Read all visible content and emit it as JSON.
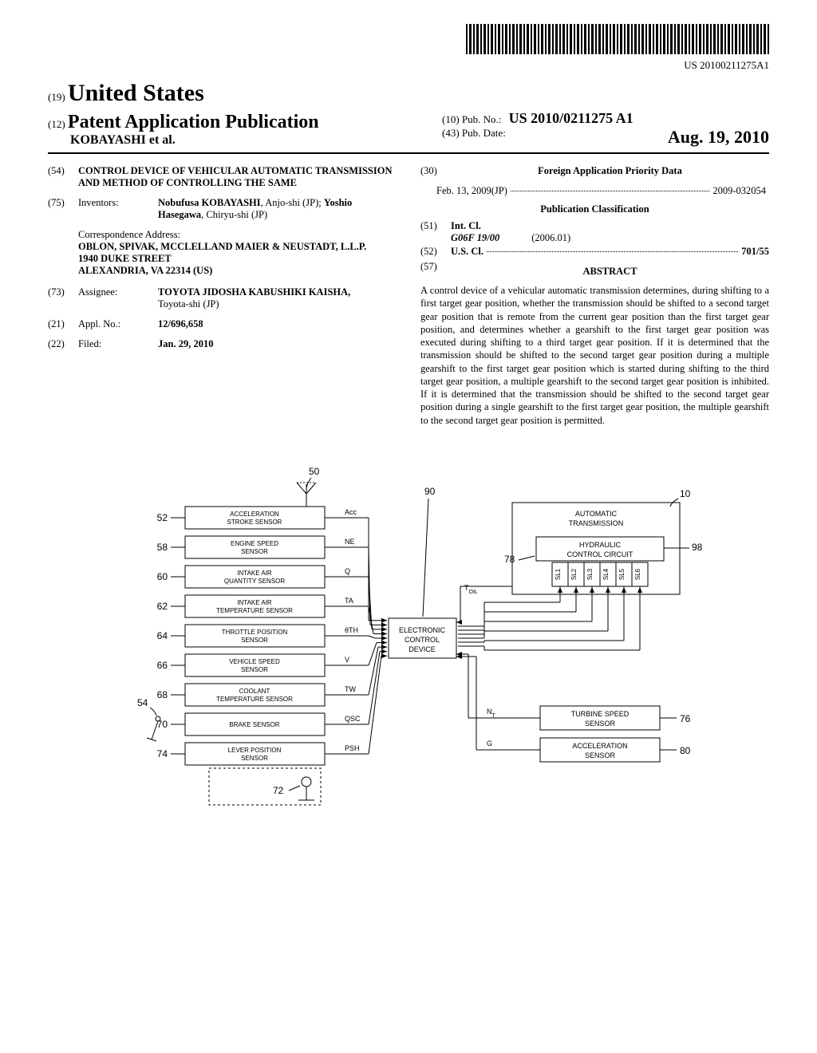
{
  "barcode_doc_number": "US 20100211275A1",
  "header": {
    "code19": "(19)",
    "country": "United States",
    "code12": "(12)",
    "pub_type": "Patent Application Publication",
    "authors": "KOBAYASHI et al.",
    "code10": "(10)",
    "pub_no_label": "Pub. No.:",
    "pub_no": "US 2010/0211275 A1",
    "code43": "(43)",
    "pub_date_label": "Pub. Date:",
    "pub_date": "Aug. 19, 2010"
  },
  "left": {
    "sec54": "(54)",
    "title": "CONTROL DEVICE OF VEHICULAR AUTOMATIC TRANSMISSION AND METHOD OF CONTROLLING THE SAME",
    "sec75": "(75)",
    "inventors_label": "Inventors:",
    "inventors": "Nobufusa KOBAYASHI, Anjo-shi (JP); Yoshio Hasegawa, Chiryu-shi (JP)",
    "corr_label": "Correspondence Address:",
    "corr_name": "OBLON, SPIVAK, MCCLELLAND MAIER & NEUSTADT, L.L.P.",
    "corr_street": "1940 DUKE STREET",
    "corr_city": "ALEXANDRIA, VA 22314 (US)",
    "sec73": "(73)",
    "assignee_label": "Assignee:",
    "assignee": "TOYOTA JIDOSHA KABUSHIKI KAISHA,",
    "assignee_loc": "Toyota-shi (JP)",
    "sec21": "(21)",
    "appl_label": "Appl. No.:",
    "appl_no": "12/696,658",
    "sec22": "(22)",
    "filed_label": "Filed:",
    "filed": "Jan. 29, 2010"
  },
  "right": {
    "sec30": "(30)",
    "foreign_header": "Foreign Application Priority Data",
    "foreign_date": "Feb. 13, 2009",
    "foreign_cc": "(JP)",
    "foreign_num": "2009-032054",
    "pub_class": "Publication Classification",
    "sec51": "(51)",
    "intcl_label": "Int. Cl.",
    "intcl_code": "G06F 19/00",
    "intcl_date": "(2006.01)",
    "sec52": "(52)",
    "uscl_label": "U.S. Cl.",
    "uscl_code": "701/55",
    "sec57": "(57)",
    "abstract_label": "ABSTRACT",
    "abstract": "A control device of a vehicular automatic transmission determines, during shifting to a first target gear position, whether the transmission should be shifted to a second target gear position that is remote from the current gear position than the first target gear position, and determines whether a gearshift to the first target gear position was executed during shifting to a third target gear position. If it is determined that the transmission should be shifted to the second target gear position during a multiple gearshift to the first target gear position which is started during shifting to the third target gear position, a multiple gearshift to the second target gear position is inhibited. If it is determined that the transmission should be shifted to the second target gear position during a single gearshift to the first target gear position, the multiple gearshift to the second target gear position is permitted."
  },
  "diagram": {
    "ref50": "50",
    "ref52": "52",
    "ref58": "58",
    "ref60": "60",
    "ref62": "62",
    "ref64": "64",
    "ref66": "66",
    "ref68": "68",
    "ref70": "70",
    "ref74": "74",
    "ref54": "54",
    "ref72": "72",
    "ref90": "90",
    "ref10": "10",
    "ref98": "98",
    "ref78": "78",
    "ref76": "76",
    "ref80": "80",
    "sensors": [
      {
        "label1": "ACCELERATION",
        "label2": "STROKE SENSOR",
        "sig": "Acc"
      },
      {
        "label1": "ENGINE SPEED",
        "label2": "SENSOR",
        "sig": "NE"
      },
      {
        "label1": "INTAKE AIR",
        "label2": "QUANTITY SENSOR",
        "sig": "Q"
      },
      {
        "label1": "INTAKE AIR",
        "label2": "TEMPERATURE SENSOR",
        "sig": "TA"
      },
      {
        "label1": "THROTTLE POSITION",
        "label2": "SENSOR",
        "sig": "θTH"
      },
      {
        "label1": "VEHICLE SPEED",
        "label2": "SENSOR",
        "sig": "V"
      },
      {
        "label1": "COOLANT",
        "label2": "TEMPERATURE SENSOR",
        "sig": "TW"
      },
      {
        "label1": "BRAKE SENSOR",
        "label2": "",
        "sig": "QSC"
      },
      {
        "label1": "LEVER POSITION",
        "label2": "SENSOR",
        "sig": "PSH"
      }
    ],
    "ecd1": "ELECTRONIC",
    "ecd2": "CONTROL",
    "ecd3": "DEVICE",
    "at1": "AUTOMATIC",
    "at2": "TRANSMISSION",
    "hcc1": "HYDRAULIC",
    "hcc2": "CONTROL CIRCUIT",
    "sl": [
      "SL1",
      "SL2",
      "SL3",
      "SL4",
      "SL5",
      "SL6"
    ],
    "ts1": "TURBINE SPEED",
    "ts2": "SENSOR",
    "sig_nt": "NT",
    "as1": "ACCELERATION",
    "as2": "SENSOR",
    "sig_g": "G",
    "sig_toil": "TOIL"
  }
}
